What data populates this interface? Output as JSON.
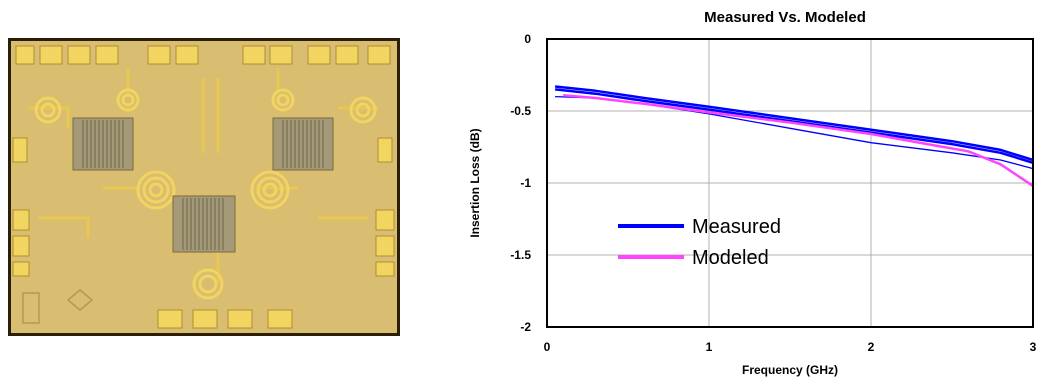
{
  "photo": {
    "description_icon": "chip-die-photo-icon",
    "colors": {
      "substrate": "#d8bb6b",
      "metal": "#f0d060",
      "border": "#3a2a10",
      "die_edge": "#b79a4e"
    }
  },
  "chart_data": {
    "type": "line",
    "title": "Measured Vs. Modeled",
    "xlabel": "Frequency (GHz)",
    "ylabel": "Insertion Loss (dB)",
    "xlim": [
      0,
      3
    ],
    "ylim": [
      -2,
      0
    ],
    "xticks": [
      "0",
      "1",
      "2",
      "3"
    ],
    "yticks": [
      "0",
      "-0.5",
      "-1",
      "-1.5",
      "-2"
    ],
    "grid": true,
    "legend_position": "lower-left",
    "legend": [
      {
        "name": "Measured",
        "color": "#0000ff"
      },
      {
        "name": "Modeled",
        "color": "#ff44ff"
      }
    ],
    "series": [
      {
        "name": "Measured",
        "color": "#0000ff",
        "width": 2.5,
        "x": [
          0.05,
          0.3,
          0.6,
          1.0,
          1.5,
          2.0,
          2.5,
          2.8,
          3.0
        ],
        "y": [
          -0.33,
          -0.36,
          -0.41,
          -0.47,
          -0.55,
          -0.63,
          -0.71,
          -0.77,
          -0.84
        ]
      },
      {
        "name": "Measured",
        "color": "#0000ff",
        "width": 2.5,
        "x": [
          0.05,
          0.3,
          0.6,
          1.0,
          1.5,
          2.0,
          2.5,
          2.8,
          3.0
        ],
        "y": [
          -0.35,
          -0.38,
          -0.43,
          -0.49,
          -0.57,
          -0.65,
          -0.73,
          -0.79,
          -0.86
        ]
      },
      {
        "name": "Measured",
        "color": "#0000ff",
        "width": 1.3,
        "x": [
          0.05,
          0.3,
          0.6,
          1.0,
          1.5,
          2.0,
          2.5,
          2.8,
          3.0
        ],
        "y": [
          -0.4,
          -0.41,
          -0.45,
          -0.52,
          -0.62,
          -0.72,
          -0.79,
          -0.84,
          -0.9
        ]
      },
      {
        "name": "Modeled",
        "color": "#ff44ff",
        "width": 2.5,
        "x": [
          0.1,
          0.3,
          0.6,
          1.0,
          1.5,
          2.0,
          2.4,
          2.6,
          2.8,
          3.0
        ],
        "y": [
          -0.39,
          -0.41,
          -0.45,
          -0.51,
          -0.58,
          -0.66,
          -0.74,
          -0.78,
          -0.87,
          -1.02
        ]
      }
    ]
  }
}
